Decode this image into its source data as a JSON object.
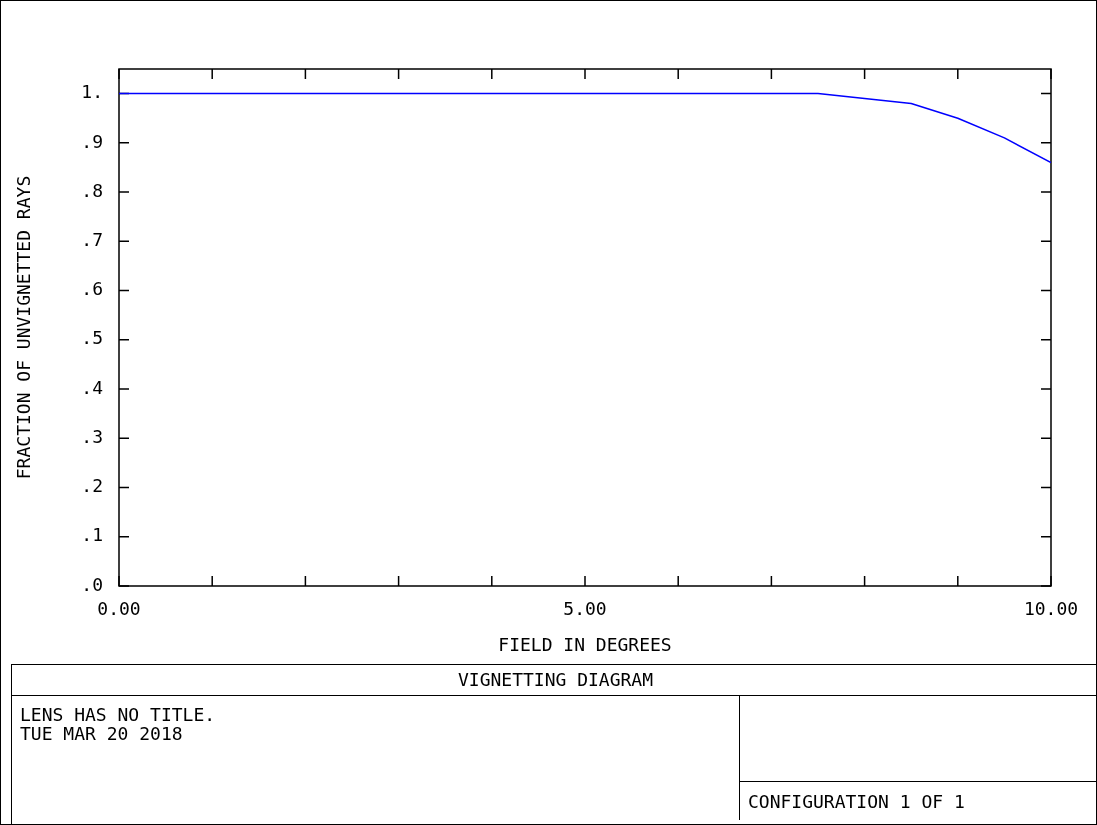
{
  "chart_data": {
    "type": "line",
    "title": "VIGNETTING DIAGRAM",
    "xlabel": "FIELD IN DEGREES",
    "ylabel": "FRACTION OF UNVIGNETTED RAYS",
    "x": [
      0,
      7.5,
      8,
      8.5,
      9,
      9.5,
      10
    ],
    "series": [
      {
        "color": "#0000ff",
        "values": [
          1,
          1,
          0.99,
          0.98,
          0.95,
          0.91,
          0.86
        ]
      }
    ],
    "xlim": [
      0,
      10
    ],
    "xticks": [
      {
        "value": 0,
        "label": "0.00"
      },
      {
        "value": 1,
        "label": null
      },
      {
        "value": 2,
        "label": null
      },
      {
        "value": 3,
        "label": null
      },
      {
        "value": 4,
        "label": null
      },
      {
        "value": 5,
        "label": "5.00"
      },
      {
        "value": 6,
        "label": null
      },
      {
        "value": 7,
        "label": null
      },
      {
        "value": 8,
        "label": null
      },
      {
        "value": 9,
        "label": null
      },
      {
        "value": 10,
        "label": "10.00"
      }
    ],
    "ylim": [
      0,
      1.05
    ],
    "yticks": [
      {
        "value": 0,
        "label": ".0"
      },
      {
        "value": 0.1,
        "label": ".1"
      },
      {
        "value": 0.2,
        "label": ".2"
      },
      {
        "value": 0.3,
        "label": ".3"
      },
      {
        "value": 0.4,
        "label": ".4"
      },
      {
        "value": 0.5,
        "label": ".5"
      },
      {
        "value": 0.6,
        "label": ".6"
      },
      {
        "value": 0.7,
        "label": ".7"
      },
      {
        "value": 0.8,
        "label": ".8"
      },
      {
        "value": 0.9,
        "label": ".9"
      },
      {
        "value": 1,
        "label": "1."
      }
    ],
    "grid": false,
    "legend": false,
    "marker": "none",
    "line_style": "solid",
    "annotations": [
      "LENS HAS NO TITLE.",
      "TUE MAR 20 2018",
      "CONFIGURATION 1 OF 1"
    ]
  }
}
